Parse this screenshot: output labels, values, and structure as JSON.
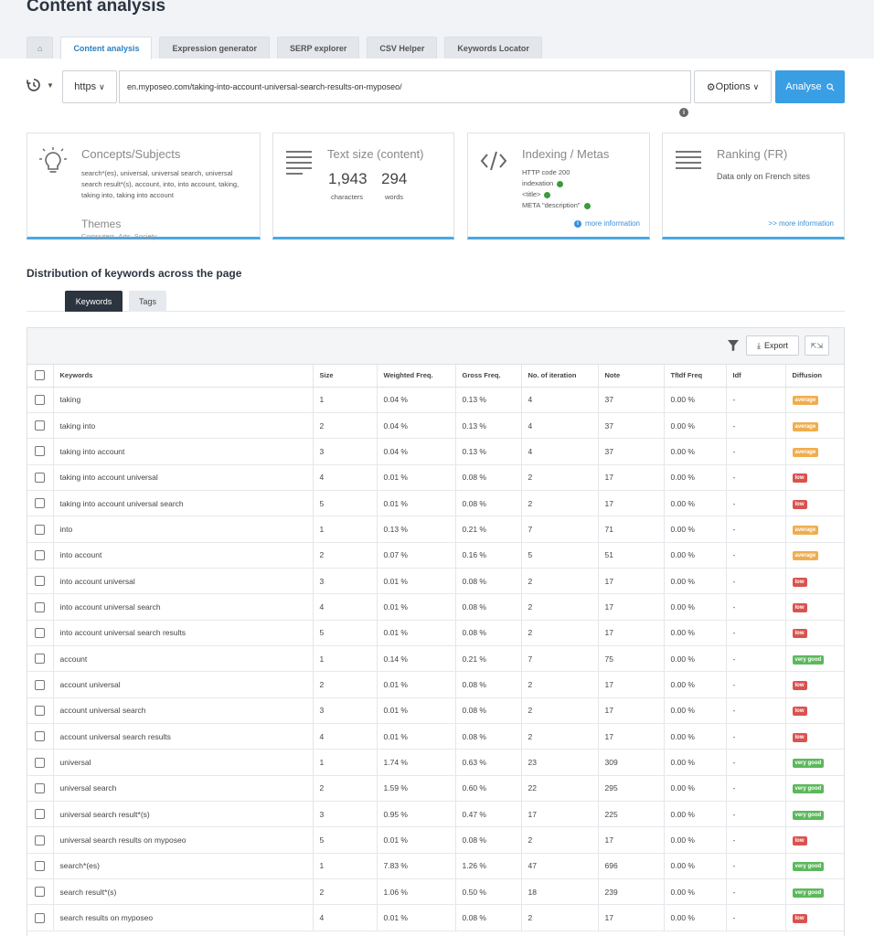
{
  "page_title": "Content analysis",
  "tabs": [
    {
      "label": "Content analysis"
    },
    {
      "label": "Expression generator"
    },
    {
      "label": "SERP explorer"
    },
    {
      "label": "CSV Helper"
    },
    {
      "label": "Keywords Locator"
    }
  ],
  "toolbar": {
    "protocol": "https",
    "url": "en.myposeo.com/taking-into-account-universal-search-results-on-myposeo/",
    "options_label": "Options",
    "analyse_label": "Analyse"
  },
  "cards": {
    "concepts": {
      "title": "Concepts/Subjects",
      "text": "search*(es), universal, universal search, universal search result*(s), account, into, into account, taking, taking into, taking into account",
      "themes_title": "Themes",
      "themes_value": "Computers, Arts, Society"
    },
    "text_size": {
      "title": "Text size (content)",
      "characters": "1,943",
      "characters_label": "characters",
      "words": "294",
      "words_label": "words"
    },
    "indexing": {
      "title": "Indexing / Metas",
      "http_code": "HTTP code 200",
      "indexation": "indexation",
      "title_tag": "<title>",
      "meta_desc": "META \"description\"",
      "more": "more information"
    },
    "ranking": {
      "title": "Ranking (FR)",
      "text": "Data only on French sites",
      "more": ">> more information"
    }
  },
  "section_title": "Distribution of keywords across the page",
  "subtabs": {
    "keywords": "Keywords",
    "tags": "Tags"
  },
  "grid": {
    "export_label": "Export",
    "columns": [
      "Keywords",
      "Size",
      "Weighted Freq.",
      "Gross Freq.",
      "No. of iteration",
      "Note",
      "TfIdf Freq",
      "Idf",
      "Diffusion"
    ],
    "rows": [
      {
        "kw": "taking",
        "size": "1",
        "wf": "0.04 %",
        "gf": "0.13 %",
        "it": "4",
        "note": "37",
        "tfidf": "0.00 %",
        "idf": "-",
        "diff": "average"
      },
      {
        "kw": "taking into",
        "size": "2",
        "wf": "0.04 %",
        "gf": "0.13 %",
        "it": "4",
        "note": "37",
        "tfidf": "0.00 %",
        "idf": "-",
        "diff": "average"
      },
      {
        "kw": "taking into account",
        "size": "3",
        "wf": "0.04 %",
        "gf": "0.13 %",
        "it": "4",
        "note": "37",
        "tfidf": "0.00 %",
        "idf": "-",
        "diff": "average"
      },
      {
        "kw": "taking into account universal",
        "size": "4",
        "wf": "0.01 %",
        "gf": "0.08 %",
        "it": "2",
        "note": "17",
        "tfidf": "0.00 %",
        "idf": "-",
        "diff": "low"
      },
      {
        "kw": "taking into account universal search",
        "size": "5",
        "wf": "0.01 %",
        "gf": "0.08 %",
        "it": "2",
        "note": "17",
        "tfidf": "0.00 %",
        "idf": "-",
        "diff": "low"
      },
      {
        "kw": "into",
        "size": "1",
        "wf": "0.13 %",
        "gf": "0.21 %",
        "it": "7",
        "note": "71",
        "tfidf": "0.00 %",
        "idf": "-",
        "diff": "average"
      },
      {
        "kw": "into account",
        "size": "2",
        "wf": "0.07 %",
        "gf": "0.16 %",
        "it": "5",
        "note": "51",
        "tfidf": "0.00 %",
        "idf": "-",
        "diff": "average"
      },
      {
        "kw": "into account universal",
        "size": "3",
        "wf": "0.01 %",
        "gf": "0.08 %",
        "it": "2",
        "note": "17",
        "tfidf": "0.00 %",
        "idf": "-",
        "diff": "low"
      },
      {
        "kw": "into account universal search",
        "size": "4",
        "wf": "0.01 %",
        "gf": "0.08 %",
        "it": "2",
        "note": "17",
        "tfidf": "0.00 %",
        "idf": "-",
        "diff": "low"
      },
      {
        "kw": "into account universal search results",
        "size": "5",
        "wf": "0.01 %",
        "gf": "0.08 %",
        "it": "2",
        "note": "17",
        "tfidf": "0.00 %",
        "idf": "-",
        "diff": "low"
      },
      {
        "kw": "account",
        "size": "1",
        "wf": "0.14 %",
        "gf": "0.21 %",
        "it": "7",
        "note": "75",
        "tfidf": "0.00 %",
        "idf": "-",
        "diff": "very good"
      },
      {
        "kw": "account universal",
        "size": "2",
        "wf": "0.01 %",
        "gf": "0.08 %",
        "it": "2",
        "note": "17",
        "tfidf": "0.00 %",
        "idf": "-",
        "diff": "low"
      },
      {
        "kw": "account universal search",
        "size": "3",
        "wf": "0.01 %",
        "gf": "0.08 %",
        "it": "2",
        "note": "17",
        "tfidf": "0.00 %",
        "idf": "-",
        "diff": "low"
      },
      {
        "kw": "account universal search results",
        "size": "4",
        "wf": "0.01 %",
        "gf": "0.08 %",
        "it": "2",
        "note": "17",
        "tfidf": "0.00 %",
        "idf": "-",
        "diff": "low"
      },
      {
        "kw": "universal",
        "size": "1",
        "wf": "1.74 %",
        "gf": "0.63 %",
        "it": "23",
        "note": "309",
        "tfidf": "0.00 %",
        "idf": "-",
        "diff": "very good"
      },
      {
        "kw": "universal search",
        "size": "2",
        "wf": "1.59 %",
        "gf": "0.60 %",
        "it": "22",
        "note": "295",
        "tfidf": "0.00 %",
        "idf": "-",
        "diff": "very good"
      },
      {
        "kw": "universal search result*(s)",
        "size": "3",
        "wf": "0.95 %",
        "gf": "0.47 %",
        "it": "17",
        "note": "225",
        "tfidf": "0.00 %",
        "idf": "-",
        "diff": "very good"
      },
      {
        "kw": "universal search results on myposeo",
        "size": "5",
        "wf": "0.01 %",
        "gf": "0.08 %",
        "it": "2",
        "note": "17",
        "tfidf": "0.00 %",
        "idf": "-",
        "diff": "low"
      },
      {
        "kw": "search*(es)",
        "size": "1",
        "wf": "7.83 %",
        "gf": "1.26 %",
        "it": "47",
        "note": "696",
        "tfidf": "0.00 %",
        "idf": "-",
        "diff": "very good"
      },
      {
        "kw": "search result*(s)",
        "size": "2",
        "wf": "1.06 %",
        "gf": "0.50 %",
        "it": "18",
        "note": "239",
        "tfidf": "0.00 %",
        "idf": "-",
        "diff": "very good"
      },
      {
        "kw": "search results on myposeo",
        "size": "4",
        "wf": "0.01 %",
        "gf": "0.08 %",
        "it": "2",
        "note": "17",
        "tfidf": "0.00 %",
        "idf": "-",
        "diff": "low"
      }
    ]
  }
}
